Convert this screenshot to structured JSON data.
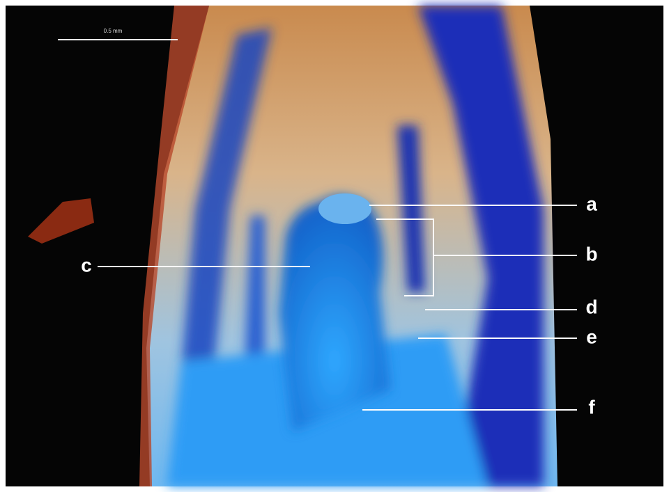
{
  "scale_bar": {
    "label": "0.5 mm"
  },
  "labels": [
    {
      "text": "a"
    },
    {
      "text": "b"
    },
    {
      "text": "c"
    },
    {
      "text": "d"
    },
    {
      "text": "e"
    },
    {
      "text": "f"
    }
  ]
}
